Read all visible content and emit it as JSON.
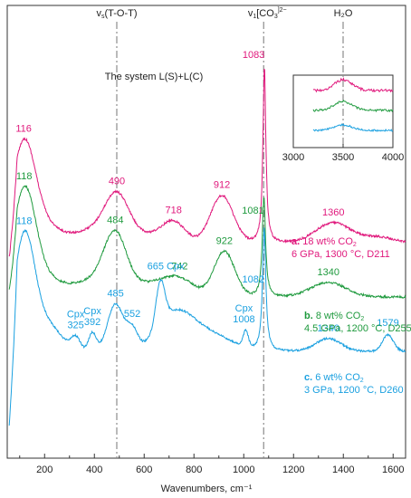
{
  "chart_data": {
    "type": "line",
    "xlabel": "Wavenumbers, cm⁻¹",
    "xlim": [
      50,
      1650
    ],
    "xticks": [
      "200",
      "400",
      "600",
      "800",
      "1000",
      "1200",
      "1400",
      "1600"
    ],
    "xtick_values": [
      200,
      400,
      600,
      800,
      1000,
      1200,
      1400,
      1600
    ],
    "ylabel": "",
    "system_label": "The system L(S)+L(C)",
    "reference_lines": [
      {
        "x": 490,
        "label_main": "v",
        "label_sub": "s",
        "label_rest": "(T-O-T)"
      },
      {
        "x": 1080,
        "label_main": "v",
        "label_sub": "1",
        "label_rest": "[CO",
        "label_sub2": "3",
        "label_sup": "]2−"
      }
    ],
    "colors": {
      "a": "#e0187c",
      "b": "#1f9a3e",
      "c": "#1aa0e0",
      "ref": "#8c8c8c"
    },
    "series": [
      {
        "key": "a",
        "name": "a.",
        "legend_line1": "18 wt% CO",
        "legend_line1_sub": "2",
        "legend_line2": "6 GPa, 1300 °C, D211",
        "peak_labels": [
          {
            "x": 116,
            "text": "116"
          },
          {
            "x": 490,
            "text": "490"
          },
          {
            "x": 718,
            "text": "718"
          },
          {
            "x": 912,
            "text": "912"
          },
          {
            "x": 1083,
            "text": "1083"
          },
          {
            "x": 1360,
            "text": "1360"
          }
        ]
      },
      {
        "key": "b",
        "name": "b.",
        "legend_line1": "8 wt% CO",
        "legend_line1_sub": "2",
        "legend_line2": "4.5 GPa, 1200 °C, D255",
        "peak_labels": [
          {
            "x": 118,
            "text": "118"
          },
          {
            "x": 484,
            "text": "484"
          },
          {
            "x": 742,
            "text": "742"
          },
          {
            "x": 922,
            "text": "922"
          },
          {
            "x": 1081,
            "text": "1081"
          },
          {
            "x": 1340,
            "text": "1340"
          }
        ]
      },
      {
        "key": "c",
        "name": "c.",
        "legend_line1": "6 wt% CO",
        "legend_line1_sub": "2",
        "legend_line2": "3 GPa, 1200 °C, D260",
        "peak_labels": [
          {
            "x": 118,
            "text": "118"
          },
          {
            "x": 325,
            "text": "Cpx"
          },
          {
            "x": 325,
            "text": "325"
          },
          {
            "x": 392,
            "text": "Cpx"
          },
          {
            "x": 392,
            "text": "392"
          },
          {
            "x": 485,
            "text": "485"
          },
          {
            "x": 552,
            "text": "552"
          },
          {
            "x": 665,
            "text": "665 Cpx"
          },
          {
            "x": 1008,
            "text": "Cpx"
          },
          {
            "x": 1008,
            "text": "1008"
          },
          {
            "x": 1082,
            "text": "1082"
          },
          {
            "x": 1340,
            "text": "1340"
          },
          {
            "x": 1579,
            "text": "1579"
          }
        ]
      }
    ],
    "inset": {
      "title": "H₂O",
      "xlim": [
        3000,
        4000
      ],
      "xticks": [
        "3000",
        "3500",
        "4000"
      ],
      "xtick_values": [
        3000,
        3500,
        4000
      ],
      "reference_x": 3500
    }
  }
}
